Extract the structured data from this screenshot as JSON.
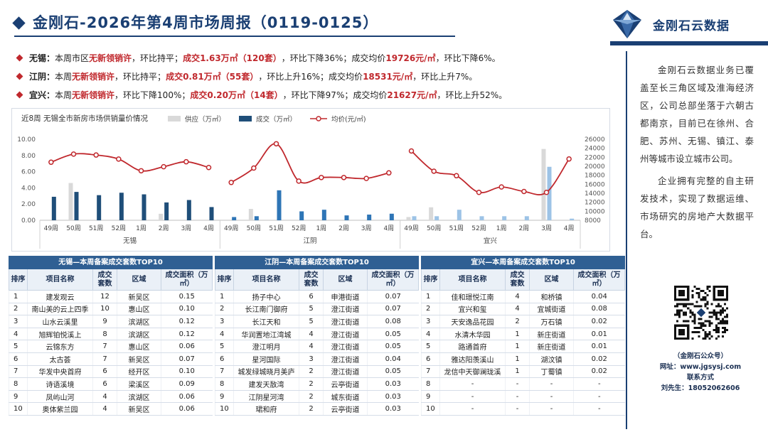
{
  "header": {
    "title": "金刚石-2026年第4周市场周报（0119-0125）",
    "brand_name": "金刚石云数据",
    "logo_icon": "diamond-logo-icon",
    "accent_color": "#1a3f73",
    "highlight_color": "#c0282d"
  },
  "summary": [
    {
      "city": "无锡：",
      "p1": "本周市区",
      "h1": "无新领销许",
      "p2": "，环比持平；",
      "h2": "成交1.63万㎡（120套）",
      "p3": "，环比下降36%；成交均价",
      "h3": "19726元/㎡",
      "p4": "，环比下降6%。"
    },
    {
      "city": "江阴：",
      "p1": "本周",
      "h1": "无新领销许",
      "p2": "，环比持平；",
      "h2": "成交0.81万㎡（55套）",
      "p3": "，环比上升16%；成交均价",
      "h3": "18531元/㎡",
      "p4": "，环比上升7%。"
    },
    {
      "city": "宜兴：",
      "p1": "本周",
      "h1": "无新领销许",
      "p2": "，环比下降100%；",
      "h2": "成交0.20万㎡（14套）",
      "p3": "，环比下降97%；成交均价",
      "h3": "21627元/㎡",
      "p4": "，环比上升52%。"
    }
  ],
  "chart_data": {
    "type": "bar",
    "title": "近8周  无锡全市新房市场供销量价情况",
    "legend": [
      "供应（万㎡）",
      "成交（万㎡）",
      "均价(元/㎡)"
    ],
    "legend_position": "top",
    "grid": false,
    "weeks": [
      "49周",
      "50周",
      "51周",
      "52周",
      "1周",
      "2周",
      "3周",
      "4周"
    ],
    "groups": [
      "无锡",
      "江阴",
      "宜兴"
    ],
    "y_left": {
      "min": 0,
      "max": 10,
      "ticks": [
        "0.00",
        "2.00",
        "4.00",
        "6.00",
        "8.00",
        "10.00"
      ]
    },
    "y_right": {
      "min": 8000,
      "max": 26000,
      "ticks": [
        "8000",
        "10000",
        "12000",
        "14000",
        "16000",
        "18000",
        "20000",
        "22000",
        "24000",
        "26000"
      ]
    },
    "series": [
      {
        "name": "供应（万㎡）",
        "type": "bar",
        "color": "#d9d9d9",
        "values": [
          [
            0,
            4.6,
            0,
            0,
            0,
            0.8,
            0,
            0
          ],
          [
            0,
            1.4,
            0,
            0,
            0,
            0,
            0,
            0
          ],
          [
            0.4,
            1.6,
            0,
            0,
            0,
            0,
            8.8,
            0
          ]
        ]
      },
      {
        "name": "成交（万㎡）",
        "type": "bar",
        "colors": [
          "#1f4e79",
          "#2e75b6",
          "#9dc3e6"
        ],
        "values": [
          [
            2.9,
            3.5,
            3.1,
            3.4,
            3.2,
            2.2,
            2.5,
            1.63
          ],
          [
            0.4,
            0.5,
            3.7,
            1.1,
            1.3,
            0.6,
            0.7,
            0.81
          ],
          [
            0.5,
            0.5,
            1.3,
            0.5,
            0.5,
            0.5,
            6.6,
            0.2
          ]
        ]
      },
      {
        "name": "均价(元/㎡)",
        "type": "line",
        "color": "#c0282d",
        "values": [
          [
            20900,
            22700,
            22500,
            21600,
            19000,
            19900,
            21000,
            19726
          ],
          [
            16400,
            19600,
            25000,
            16700,
            17500,
            17500,
            17300,
            18531
          ],
          [
            23400,
            18900,
            17900,
            14200,
            15400,
            14400,
            14200,
            21627
          ]
        ]
      }
    ]
  },
  "tables": [
    {
      "caption": "无锡—本周备案成交套数TOP10",
      "headers": [
        "排序",
        "项目名称",
        "成交套数",
        "区域",
        "成交面积（万㎡）"
      ],
      "rows": [
        [
          "1",
          "建发观云",
          "12",
          "新吴区",
          "0.15"
        ],
        [
          "2",
          "南山美的云上四季",
          "10",
          "惠山区",
          "0.10"
        ],
        [
          "3",
          "山水云溪里",
          "9",
          "滨湖区",
          "0.12"
        ],
        [
          "4",
          "旭辉铂悦溪上",
          "8",
          "滨湖区",
          "0.12"
        ],
        [
          "5",
          "云锦东方",
          "7",
          "惠山区",
          "0.06"
        ],
        [
          "6",
          "太古荟",
          "7",
          "新吴区",
          "0.07"
        ],
        [
          "7",
          "华发中央首府",
          "6",
          "经开区",
          "0.10"
        ],
        [
          "8",
          "诗语溪境",
          "6",
          "梁溪区",
          "0.09"
        ],
        [
          "9",
          "凤屿山河",
          "4",
          "滨湖区",
          "0.06"
        ],
        [
          "10",
          "奥体紫兰园",
          "4",
          "新吴区",
          "0.06"
        ]
      ]
    },
    {
      "caption": "江阴—本周备案成交套数TOP10",
      "headers": [
        "排序",
        "项目名称",
        "成交套数",
        "区域",
        "成交面积（万㎡）"
      ],
      "rows": [
        [
          "1",
          "扬子中心",
          "6",
          "申港街道",
          "0.07"
        ],
        [
          "2",
          "长江南门御府",
          "5",
          "澄江街道",
          "0.07"
        ],
        [
          "3",
          "长江天和",
          "5",
          "澄江街道",
          "0.08"
        ],
        [
          "4",
          "华润置地江湾城",
          "4",
          "澄江街道",
          "0.05"
        ],
        [
          "5",
          "澄江明月",
          "4",
          "澄江街道",
          "0.05"
        ],
        [
          "6",
          "星河国际",
          "3",
          "澄江街道",
          "0.04"
        ],
        [
          "7",
          "城发绿城晓月美庐",
          "2",
          "澄江街道",
          "0.05"
        ],
        [
          "8",
          "建发天敔湾",
          "2",
          "云亭街道",
          "0.03"
        ],
        [
          "9",
          "江阴星河湾",
          "2",
          "城东街道",
          "0.03"
        ],
        [
          "10",
          "珺和府",
          "2",
          "云亭街道",
          "0.03"
        ]
      ]
    },
    {
      "caption": "宜兴—本周备案成交套数TOP10",
      "headers": [
        "排序",
        "项目名称",
        "成交套数",
        "区域",
        "成交面积（万㎡）"
      ],
      "rows": [
        [
          "1",
          "佳和璟悦江南",
          "4",
          "和桥镇",
          "0.04"
        ],
        [
          "2",
          "宜兴和玺",
          "4",
          "宜城街道",
          "0.08"
        ],
        [
          "3",
          "天安逸品花园",
          "2",
          "万石镇",
          "0.02"
        ],
        [
          "4",
          "水清木华园",
          "1",
          "新庄街道",
          "0.01"
        ],
        [
          "5",
          "路通首府",
          "1",
          "新庄街道",
          "0.01"
        ],
        [
          "6",
          "雅达阳羡溪山",
          "1",
          "湖汶镇",
          "0.02"
        ],
        [
          "7",
          "龙信中天御澜珑溪",
          "1",
          "丁蜀镇",
          "0.02"
        ],
        [
          "8",
          "-",
          "-",
          "-",
          "-"
        ],
        [
          "9",
          "-",
          "-",
          "-",
          "-"
        ],
        [
          "10",
          "-",
          "-",
          "-",
          "-"
        ]
      ]
    }
  ],
  "side": {
    "intro_p1": "金刚石云数据业务已覆盖至长三角区域及淮海经济区，公司总部坐落于六朝古都南京，目前已在徐州、合肥、苏州、无锡、镇江、泰州等城市设立城市公司。",
    "intro_p2": "企业拥有完整的自主研发技术，实现了数据运维、市场研究的房地产大数据平台。",
    "qr_icon": "qr-code-icon",
    "account_label": "（金刚石公众号）",
    "website": "网址：www.jgsysj.com",
    "contact_title": "联系方式",
    "contact_person": "刘先生：18052062606"
  }
}
